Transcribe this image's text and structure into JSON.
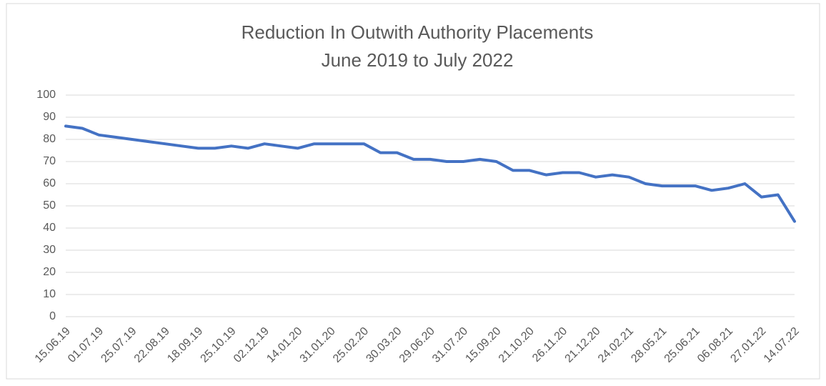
{
  "chart_data": {
    "type": "line",
    "title": "Reduction In Outwith Authority Placements",
    "subtitle": "June 2019 to July 2022",
    "categories": [
      "15.06.19",
      null,
      "01.07.19",
      null,
      "25.07.19",
      null,
      "22.08.19",
      null,
      "18.09.19",
      null,
      "25.10.19",
      null,
      "02.12.19",
      null,
      "14.01.20",
      null,
      "31.01.20",
      null,
      "25.02.20",
      null,
      "30.03.20",
      null,
      "29.06.20",
      null,
      "31.07.20",
      null,
      "15.09.20",
      null,
      "21.10.20",
      null,
      "26.11.20",
      null,
      "21.12.20",
      null,
      "24.02.21",
      null,
      "28.05.21",
      null,
      "25.06.21",
      null,
      "06.08.21",
      null,
      "27.01.22",
      null,
      "14.07.22"
    ],
    "values": [
      86,
      85,
      82,
      81,
      80,
      79,
      78,
      77,
      76,
      76,
      77,
      76,
      78,
      77,
      76,
      78,
      78,
      78,
      78,
      74,
      74,
      71,
      71,
      70,
      70,
      71,
      70,
      66,
      66,
      64,
      65,
      65,
      63,
      64,
      63,
      60,
      59,
      59,
      59,
      57,
      58,
      60,
      54,
      55,
      43
    ],
    "color": "#4472c4",
    "ylim": [
      0,
      100
    ],
    "yticks": [
      0,
      10,
      20,
      30,
      40,
      50,
      60,
      70,
      80,
      90,
      100
    ],
    "grid": true
  }
}
